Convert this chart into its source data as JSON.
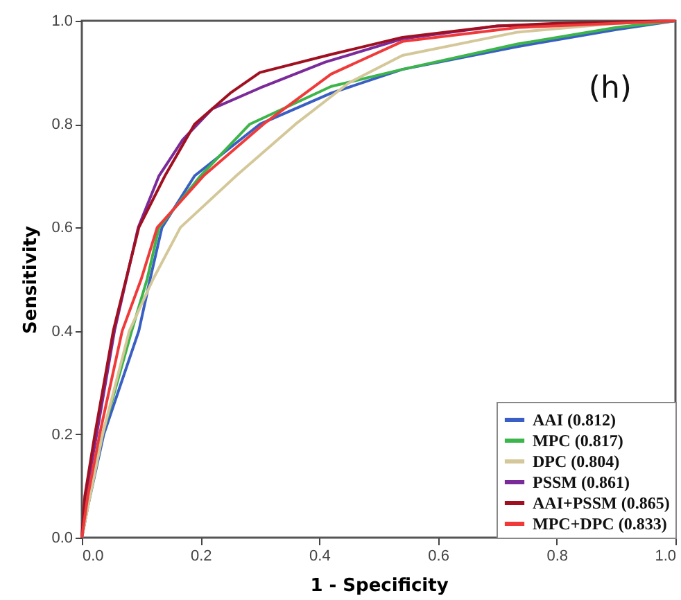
{
  "chart_data": {
    "type": "line",
    "xlabel": "1 - Specificity",
    "ylabel": "Sensitivity",
    "annotations": [
      "(h)"
    ],
    "xlim": [
      0,
      1
    ],
    "ylim": [
      0,
      1
    ],
    "xticks": [
      {
        "value": 0,
        "label": "0.0"
      },
      {
        "value": 0.2,
        "label": "0.2"
      },
      {
        "value": 0.4,
        "label": "0.4"
      },
      {
        "value": 0.6,
        "label": "0.6"
      },
      {
        "value": 0.8,
        "label": "0.8"
      },
      {
        "value": 1,
        "label": "1.0"
      }
    ],
    "yticks": [
      {
        "value": 0,
        "label": "0.0"
      },
      {
        "value": 0.2,
        "label": "0.2"
      },
      {
        "value": 0.4,
        "label": "0.4"
      },
      {
        "value": 0.6,
        "label": "0.6"
      },
      {
        "value": 0.8,
        "label": "0.8"
      },
      {
        "value": 1,
        "label": "1.0"
      }
    ],
    "legend": "bottom right",
    "grid": false,
    "series": [
      {
        "name": "AAI (0.812)",
        "color": "#3a5fc4",
        "x": [
          0,
          0.01,
          0.037,
          0.096,
          0.115,
          0.135,
          0.19,
          0.3,
          0.42,
          0.54,
          0.734,
          0.9,
          1
        ],
        "values": [
          0,
          0.06,
          0.2,
          0.4,
          0.5,
          0.6,
          0.7,
          0.8,
          0.86,
          0.906,
          0.95,
          0.983,
          1
        ]
      },
      {
        "name": "MPC (0.817)",
        "color": "#3cb54a",
        "x": [
          0,
          0.01,
          0.035,
          0.084,
          0.11,
          0.13,
          0.2,
          0.283,
          0.42,
          0.54,
          0.734,
          0.9,
          1
        ],
        "values": [
          0,
          0.06,
          0.2,
          0.4,
          0.5,
          0.6,
          0.7,
          0.8,
          0.873,
          0.906,
          0.955,
          0.987,
          1
        ]
      },
      {
        "name": "DPC (0.804)",
        "color": "#d4c89a",
        "x": [
          0,
          0.012,
          0.035,
          0.08,
          0.12,
          0.166,
          0.26,
          0.36,
          0.45,
          0.54,
          0.734,
          0.9,
          1
        ],
        "values": [
          0,
          0.07,
          0.2,
          0.4,
          0.5,
          0.6,
          0.7,
          0.8,
          0.88,
          0.933,
          0.978,
          0.995,
          1
        ]
      },
      {
        "name": "PSSM (0.861)",
        "color": "#7b2a9a",
        "x": [
          0,
          0.005,
          0.025,
          0.055,
          0.095,
          0.13,
          0.17,
          0.22,
          0.3,
          0.41,
          0.54,
          0.7,
          1
        ],
        "values": [
          0,
          0.07,
          0.2,
          0.4,
          0.6,
          0.7,
          0.77,
          0.83,
          0.87,
          0.92,
          0.965,
          0.99,
          1
        ]
      },
      {
        "name": "AAI+PSSM (0.865)",
        "color": "#a01020",
        "x": [
          0,
          0.005,
          0.022,
          0.053,
          0.096,
          0.14,
          0.19,
          0.25,
          0.3,
          0.42,
          0.54,
          0.7,
          0.8,
          1
        ],
        "values": [
          0,
          0.08,
          0.2,
          0.4,
          0.6,
          0.7,
          0.8,
          0.86,
          0.9,
          0.935,
          0.968,
          0.99,
          0.995,
          1
        ]
      },
      {
        "name": "MPC+DPC (0.833)",
        "color": "#f03a3a",
        "x": [
          0,
          0.01,
          0.03,
          0.068,
          0.1,
          0.127,
          0.205,
          0.306,
          0.42,
          0.54,
          0.734,
          0.9,
          1
        ],
        "values": [
          0,
          0.08,
          0.2,
          0.4,
          0.5,
          0.6,
          0.7,
          0.8,
          0.897,
          0.96,
          0.987,
          0.995,
          1
        ]
      }
    ]
  }
}
